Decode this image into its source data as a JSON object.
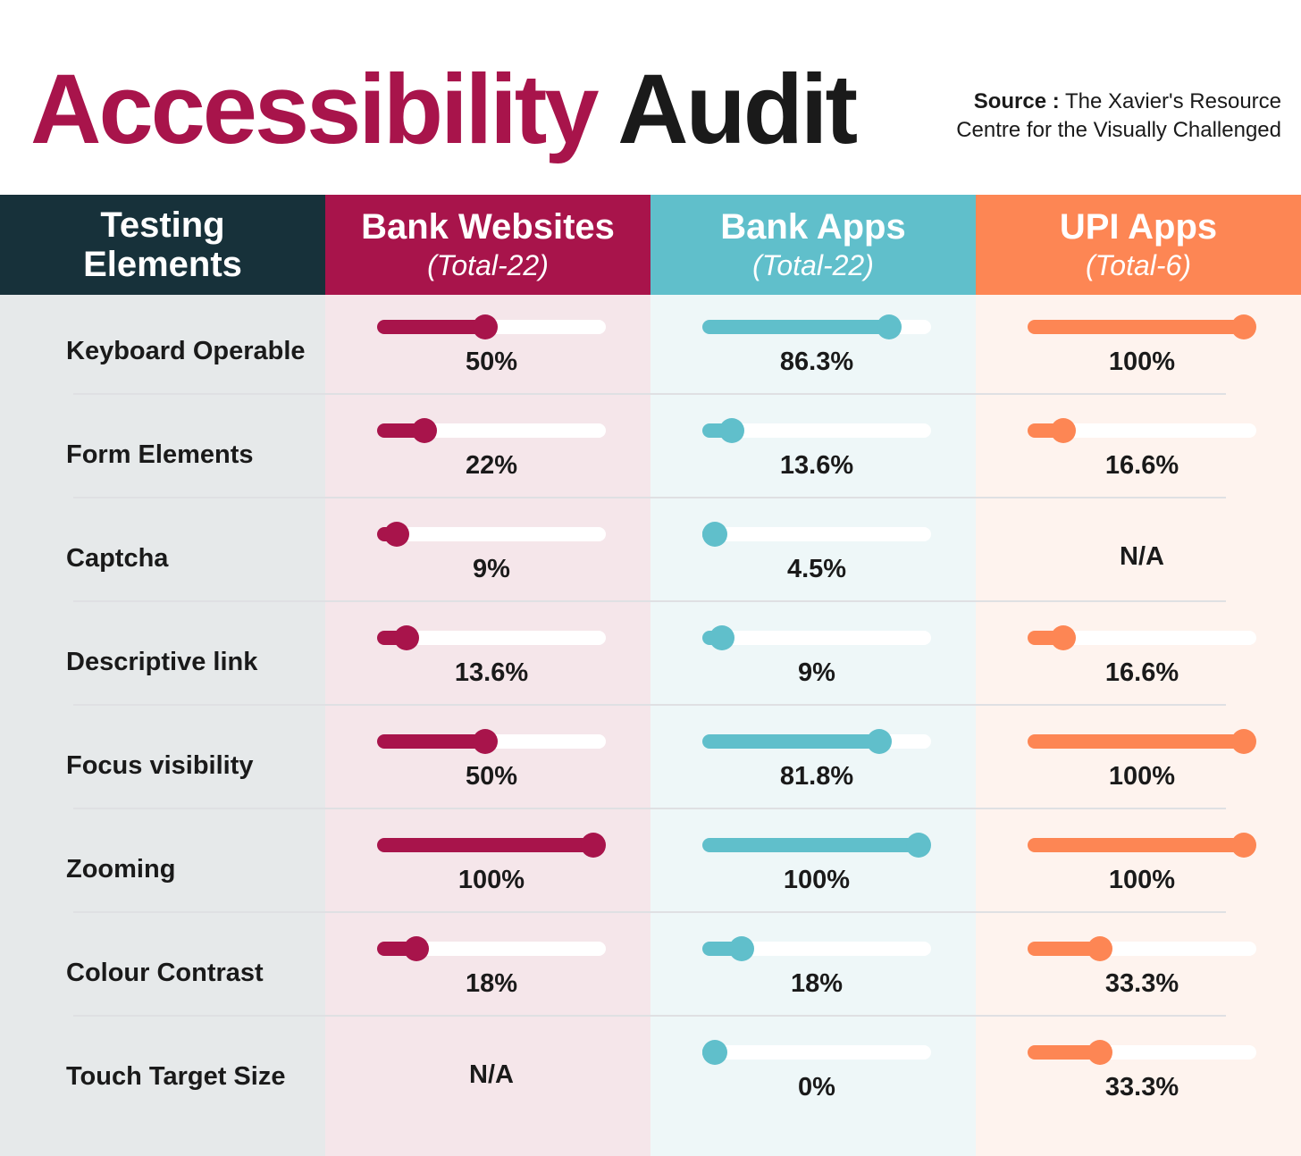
{
  "title": {
    "part1": "Accessibility",
    "part2": "Audit"
  },
  "source": {
    "label": "Source :",
    "line1": "The Xavier's Resource",
    "line2": "Centre for the Visually Challenged"
  },
  "colors": {
    "row_head": "#17313a",
    "row_bg": "#e6e9ea",
    "bank_websites": "#a8144b",
    "bank_websites_bg": "#f5e6ea",
    "bank_apps": "#60bfcb",
    "bank_apps_bg": "#eef7f8",
    "upi_apps": "#fd8654",
    "upi_apps_bg": "#fef3ee"
  },
  "chart_data": {
    "type": "table",
    "row_header": {
      "line1": "Testing",
      "line2": "Elements"
    },
    "categories": [
      "Keyboard Operable",
      "Form Elements",
      "Captcha",
      "Descriptive link",
      "Focus visibility",
      "Zooming",
      "Colour Contrast",
      "Touch Target Size"
    ],
    "series": [
      {
        "name": "Bank Websites",
        "total": "(Total-22)",
        "labels": [
          "50%",
          "22%",
          "9%",
          "13.6%",
          "50%",
          "100%",
          "18%",
          "N/A"
        ],
        "values": [
          50,
          22,
          9,
          13.6,
          50,
          100,
          18,
          null
        ]
      },
      {
        "name": "Bank Apps",
        "total": "(Total-22)",
        "labels": [
          "86.3%",
          "13.6%",
          "4.5%",
          "9%",
          "81.8%",
          "100%",
          "18%",
          "0%"
        ],
        "values": [
          86.3,
          13.6,
          4.5,
          9,
          81.8,
          100,
          18,
          0
        ]
      },
      {
        "name": "UPI Apps",
        "total": "(Total-6)",
        "labels": [
          "100%",
          "16.6%",
          "N/A",
          "16.6%",
          "100%",
          "100%",
          "33.3%",
          "33.3%"
        ],
        "values": [
          100,
          16.6,
          null,
          16.6,
          100,
          100,
          33.3,
          33.3
        ]
      }
    ]
  }
}
